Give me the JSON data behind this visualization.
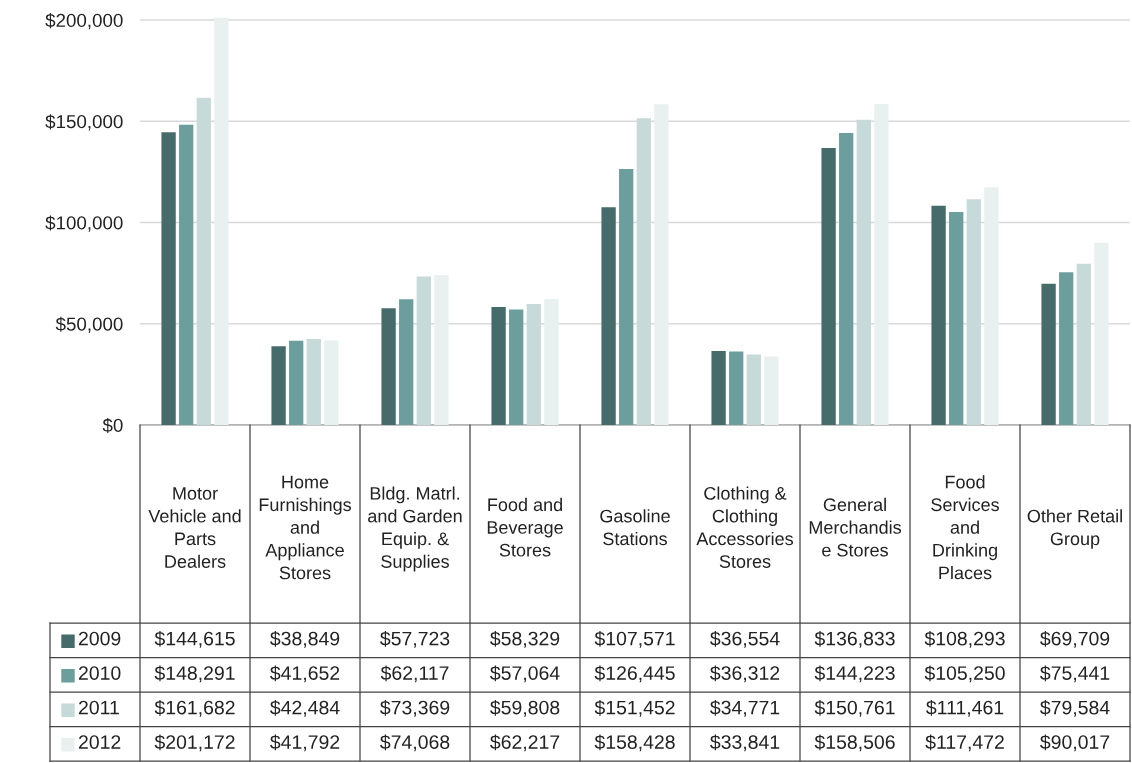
{
  "chart_data": {
    "type": "bar",
    "categories": [
      "Motor Vehicle and Parts Dealers",
      "Home Furnishings and Appliance Stores",
      "Bldg. Matrl. and Garden Equip. & Supplies",
      "Food and Beverage Stores",
      "Gasoline Stations",
      "Clothing & Clothing Accessories Stores",
      "General Merchandise Stores",
      "Food Services and Drinking Places",
      "Other Retail Group"
    ],
    "series": [
      {
        "name": "2009",
        "color": "#466b6b",
        "values": [
          144615,
          38849,
          57723,
          58329,
          107571,
          36554,
          136833,
          108293,
          69709
        ],
        "value_labels": [
          "$144,615",
          "$38,849",
          "$57,723",
          "$58,329",
          "$107,571",
          "$36,554",
          "$136,833",
          "$108,293",
          "$69,709"
        ]
      },
      {
        "name": "2010",
        "color": "#6b9e9c",
        "values": [
          148291,
          41652,
          62117,
          57064,
          126445,
          36312,
          144223,
          105250,
          75441
        ],
        "value_labels": [
          "$148,291",
          "$41,652",
          "$62,117",
          "$57,064",
          "$126,445",
          "$36,312",
          "$144,223",
          "$105,250",
          "$75,441"
        ]
      },
      {
        "name": "2011",
        "color": "#c6dad9",
        "values": [
          161682,
          42484,
          73369,
          59808,
          151452,
          34771,
          150761,
          111461,
          79584
        ],
        "value_labels": [
          "$161,682",
          "$42,484",
          "$73,369",
          "$59,808",
          "$151,452",
          "$34,771",
          "$150,761",
          "$111,461",
          "$79,584"
        ]
      },
      {
        "name": "2012",
        "color": "#e9f0f0",
        "values": [
          201172,
          41792,
          74068,
          62217,
          158428,
          33841,
          158506,
          117472,
          90017
        ],
        "value_labels": [
          "$201,172",
          "$41,792",
          "$74,068",
          "$62,217",
          "$158,428",
          "$33,841",
          "$158,506",
          "$117,472",
          "$90,017"
        ]
      }
    ],
    "ylim": [
      0,
      202000
    ],
    "yticks": [
      {
        "value": 0,
        "label": "$0"
      },
      {
        "value": 50000,
        "label": "$50,000"
      },
      {
        "value": 100000,
        "label": "$100,000"
      },
      {
        "value": 150000,
        "label": "$150,000"
      },
      {
        "value": 200000,
        "label": "$200,000"
      }
    ],
    "grid": "y",
    "legend": "bottom"
  }
}
